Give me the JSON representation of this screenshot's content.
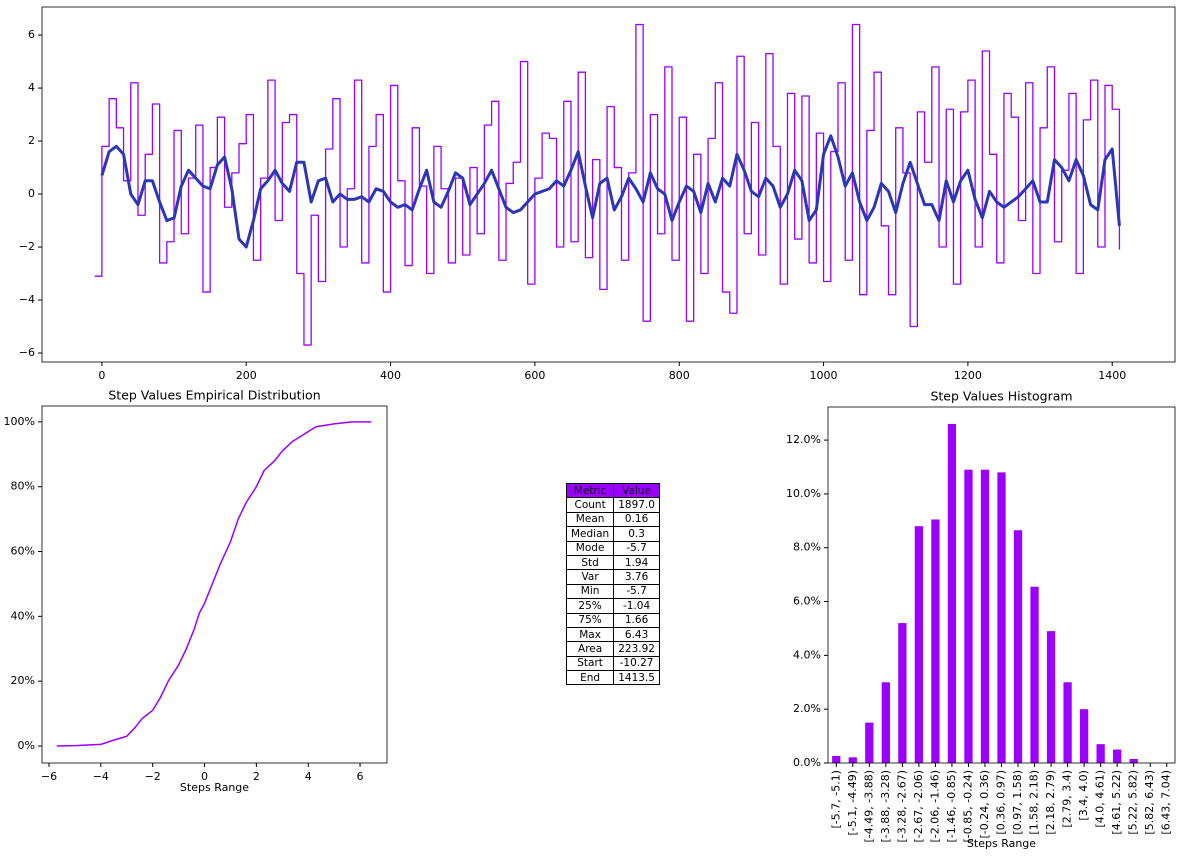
{
  "chart_data": [
    {
      "type": "line",
      "xlim": [
        -83,
        1487
      ],
      "ylim": [
        -6.34,
        7.06
      ],
      "xticks": [
        0,
        200,
        400,
        600,
        800,
        1000,
        1200,
        1400
      ],
      "yticks": [
        {
          "value": -6,
          "label": "−6"
        },
        {
          "value": -4,
          "label": "−4"
        },
        {
          "value": -2,
          "label": "−2"
        },
        0,
        2,
        4,
        6
      ],
      "series": [
        {
          "color": "#9b00ff",
          "drawstyle": "steps-post",
          "width": 1.3,
          "x": [
            -10,
            0,
            10,
            20,
            30,
            40,
            50,
            60,
            70,
            80,
            90,
            100,
            110,
            120,
            130,
            140,
            150,
            160,
            170,
            180,
            190,
            200,
            210,
            220,
            230,
            240,
            250,
            260,
            270,
            280,
            290,
            300,
            310,
            320,
            330,
            340,
            350,
            360,
            370,
            380,
            390,
            400,
            410,
            420,
            430,
            440,
            450,
            460,
            470,
            480,
            490,
            500,
            510,
            520,
            530,
            540,
            550,
            560,
            570,
            580,
            590,
            600,
            610,
            620,
            630,
            640,
            650,
            660,
            670,
            680,
            690,
            700,
            710,
            720,
            730,
            740,
            750,
            760,
            770,
            780,
            790,
            800,
            810,
            820,
            830,
            840,
            850,
            860,
            870,
            880,
            890,
            900,
            910,
            920,
            930,
            940,
            950,
            960,
            970,
            980,
            990,
            1000,
            1010,
            1020,
            1030,
            1040,
            1050,
            1060,
            1070,
            1080,
            1090,
            1100,
            1110,
            1120,
            1130,
            1140,
            1150,
            1160,
            1170,
            1180,
            1190,
            1200,
            1210,
            1220,
            1230,
            1240,
            1250,
            1260,
            1270,
            1280,
            1290,
            1300,
            1310,
            1320,
            1330,
            1340,
            1350,
            1360,
            1370,
            1380,
            1390,
            1400,
            1410
          ],
          "values": [
            -3.1,
            1.8,
            3.6,
            2.5,
            0.5,
            4.2,
            -0.8,
            1.5,
            3.4,
            -2.6,
            -1.8,
            2.4,
            -1.5,
            0.6,
            2.6,
            -3.7,
            1.0,
            2.9,
            -0.5,
            0.8,
            1.9,
            3.0,
            -2.5,
            0.6,
            4.3,
            -1.0,
            2.7,
            3.0,
            -3.0,
            -5.7,
            -0.8,
            -3.3,
            1.7,
            3.6,
            -2.0,
            0.2,
            4.3,
            -2.6,
            1.8,
            3.0,
            -3.7,
            4.1,
            0.5,
            -2.7,
            2.5,
            0.3,
            -3.0,
            1.8,
            0.2,
            -2.6,
            0.6,
            -2.3,
            1.0,
            -1.5,
            2.6,
            3.5,
            -2.5,
            0.4,
            1.2,
            5.0,
            -3.4,
            0.6,
            2.3,
            2.1,
            -2.0,
            3.5,
            -1.8,
            4.6,
            -2.4,
            1.3,
            -3.6,
            3.3,
            1.0,
            -2.5,
            0.8,
            6.4,
            -4.8,
            3.0,
            -1.5,
            4.8,
            -2.5,
            2.9,
            -4.8,
            1.5,
            -3.0,
            2.1,
            4.2,
            -3.7,
            -4.5,
            5.2,
            -1.5,
            2.7,
            -2.3,
            5.3,
            1.8,
            -3.4,
            3.8,
            -1.7,
            3.7,
            -2.6,
            2.3,
            -3.3,
            1.6,
            4.2,
            -2.5,
            6.4,
            -3.8,
            2.4,
            4.6,
            -1.2,
            -3.8,
            2.5,
            0.8,
            -5.0,
            3.1,
            1.2,
            4.8,
            -2.0,
            3.2,
            -3.4,
            3.1,
            4.3,
            -2.0,
            5.4,
            1.5,
            -2.6,
            3.8,
            2.9,
            -1.0,
            4.2,
            -3.0,
            2.5,
            4.8,
            -1.8,
            0.9,
            3.8,
            -3.0,
            2.8,
            4.3,
            -2.0,
            4.1,
            3.2,
            -2.1
          ]
        },
        {
          "color": "#2b36b8",
          "width": 3,
          "x": [
            0,
            10,
            20,
            30,
            40,
            50,
            60,
            70,
            80,
            90,
            100,
            110,
            120,
            130,
            140,
            150,
            160,
            170,
            180,
            190,
            200,
            210,
            220,
            230,
            240,
            250,
            260,
            270,
            280,
            290,
            300,
            310,
            320,
            330,
            340,
            350,
            360,
            370,
            380,
            390,
            400,
            410,
            420,
            430,
            440,
            450,
            460,
            470,
            480,
            490,
            500,
            510,
            520,
            530,
            540,
            550,
            560,
            570,
            580,
            590,
            600,
            610,
            620,
            630,
            640,
            650,
            660,
            670,
            680,
            690,
            700,
            710,
            720,
            730,
            740,
            750,
            760,
            770,
            780,
            790,
            800,
            810,
            820,
            830,
            840,
            850,
            860,
            870,
            880,
            890,
            900,
            910,
            920,
            930,
            940,
            950,
            960,
            970,
            980,
            990,
            1000,
            1010,
            1020,
            1030,
            1040,
            1050,
            1060,
            1070,
            1080,
            1090,
            1100,
            1110,
            1120,
            1130,
            1140,
            1150,
            1160,
            1170,
            1180,
            1190,
            1200,
            1210,
            1220,
            1230,
            1240,
            1250,
            1260,
            1270,
            1280,
            1290,
            1300,
            1310,
            1320,
            1330,
            1340,
            1350,
            1360,
            1370,
            1380,
            1390,
            1400,
            1410
          ],
          "values": [
            0.7,
            1.6,
            1.8,
            1.5,
            0,
            -0.4,
            0.5,
            0.5,
            -0.3,
            -1.0,
            -0.9,
            0.3,
            0.9,
            0.6,
            0.3,
            0.2,
            1.1,
            1.4,
            0.2,
            -1.7,
            -2.0,
            -1.0,
            0.2,
            0.5,
            0.9,
            0.4,
            0.1,
            1.2,
            1.2,
            -0.3,
            0.5,
            0.6,
            -0.3,
            0,
            -0.2,
            -0.2,
            -0.1,
            -0.3,
            0.2,
            0.1,
            -0.3,
            -0.5,
            -0.4,
            -0.6,
            0.2,
            0.9,
            -0.3,
            -0.5,
            0.1,
            0.8,
            0.6,
            -0.4,
            0,
            0.4,
            0.9,
            0.2,
            -0.5,
            -0.7,
            -0.6,
            -0.3,
            0,
            0.1,
            0.2,
            0.5,
            0.3,
            0.9,
            1.6,
            0.3,
            -0.9,
            0.4,
            0.6,
            -0.6,
            -0.1,
            0.6,
            0.2,
            -0.3,
            0.8,
            0.2,
            0,
            -1.0,
            -0.3,
            0.3,
            0.1,
            -0.7,
            0.4,
            -0.3,
            0.6,
            0.3,
            1.5,
            0.9,
            0.1,
            -0.1,
            0.6,
            0.3,
            -0.5,
            0,
            0.9,
            0.5,
            -1.0,
            -0.6,
            1.5,
            2.2,
            1.4,
            0.3,
            0.8,
            -0.3,
            -1.0,
            -0.5,
            0.4,
            0.1,
            -0.7,
            0.4,
            1.2,
            0.4,
            -0.4,
            -0.4,
            -1.0,
            0.5,
            -0.3,
            0.5,
            0.9,
            -0.2,
            -0.9,
            0.1,
            -0.3,
            -0.5,
            -0.3,
            -0.1,
            0.2,
            0.5,
            -0.3,
            -0.3,
            1.3,
            1.0,
            0.5,
            1.3,
            0.7,
            -0.4,
            -0.6,
            1.3,
            1.7,
            -1.2
          ]
        }
      ]
    },
    {
      "type": "line",
      "title": "Step Values Empirical Distribution",
      "xlabel": "Steps Range",
      "xlim": [
        -6.27,
        7.04
      ],
      "ylim": [
        -5.25,
        104.9
      ],
      "xticks": [
        {
          "value": -6,
          "label": "−6"
        },
        {
          "value": -4,
          "label": "−4"
        },
        {
          "value": -2,
          "label": "−2"
        },
        0,
        2,
        4,
        6
      ],
      "yticks": [
        {
          "value": 0,
          "label": "0%"
        },
        {
          "value": 20,
          "label": "20%"
        },
        {
          "value": 40,
          "label": "40%"
        },
        {
          "value": 60,
          "label": "60%"
        },
        {
          "value": 80,
          "label": "80%"
        },
        {
          "value": 100,
          "label": "100%"
        }
      ],
      "series": [
        {
          "color": "#9b00ff",
          "width": 1.5,
          "x": [
            -5.7,
            -5,
            -4.5,
            -4,
            -3.5,
            -3,
            -2.7,
            -2.4,
            -2,
            -1.7,
            -1.4,
            -1,
            -0.7,
            -0.4,
            -0.2,
            0,
            0.3,
            0.6,
            1,
            1.3,
            1.6,
            2,
            2.3,
            2.7,
            3,
            3.4,
            3.8,
            4.3,
            5,
            5.7,
            6.43
          ],
          "values": [
            0,
            0.1,
            0.3,
            0.5,
            1.8,
            3,
            5.5,
            8.5,
            11,
            15,
            20,
            25,
            30,
            36,
            41,
            44,
            50,
            56,
            63,
            70,
            75,
            80,
            85,
            88,
            91,
            94,
            96,
            98.5,
            99.4,
            100,
            100
          ]
        }
      ]
    },
    {
      "type": "bar",
      "title": "Step Values Histogram",
      "xlabel": "Steps Range",
      "color": "#9b00ff",
      "categories": [
        "[-5.7, -5.1)",
        "[-5.1, -4.49)",
        "[-4.49, -3.88)",
        "[-3.88, -3.28)",
        "[-3.28, -2.67)",
        "[-2.67, -2.06)",
        "[-2.06, -1.46)",
        "[-1.46, -0.85)",
        "[-0.85, -0.24)",
        "[-0.24, 0.36)",
        "[0.36, 0.97)",
        "[0.97, 1.58)",
        "[1.58, 2.18)",
        "[2.18, 2.79)",
        "[2.79, 3.4)",
        "[3.4, 4.0)",
        "[4.0, 4.61)",
        "[4.61, 5.22)",
        "[5.22, 5.82)",
        "[5.82, 6.43)",
        "[6.43, 7.04)"
      ],
      "values": [
        0.26,
        0.21,
        1.5,
        3.0,
        5.2,
        8.8,
        9.05,
        12.6,
        10.9,
        10.9,
        10.8,
        8.65,
        6.55,
        4.9,
        3.0,
        2.0,
        0.7,
        0.5,
        0.15,
        0,
        0
      ],
      "ylim": [
        0,
        13.23
      ],
      "yticks": [
        {
          "value": 0,
          "label": "0.0%"
        },
        {
          "value": 2,
          "label": "2.0%"
        },
        {
          "value": 4,
          "label": "4.0%"
        },
        {
          "value": 6,
          "label": "6.0%"
        },
        {
          "value": 8,
          "label": "8.0%"
        },
        {
          "value": 10,
          "label": "10.0%"
        },
        {
          "value": 12,
          "label": "12.0%"
        }
      ]
    }
  ],
  "table": {
    "header": [
      "Metric",
      "Value"
    ],
    "rows": [
      [
        "Count",
        "1897.0"
      ],
      [
        "Mean",
        "0.16"
      ],
      [
        "Median",
        "0.3"
      ],
      [
        "Mode",
        "-5.7"
      ],
      [
        "Std",
        "1.94"
      ],
      [
        "Var",
        "3.76"
      ],
      [
        "Min",
        "-5.7"
      ],
      [
        "25%",
        "-1.04"
      ],
      [
        "75%",
        "1.66"
      ],
      [
        "Max",
        "6.43"
      ],
      [
        "Area",
        "223.92"
      ],
      [
        "Start",
        "-10.27"
      ],
      [
        "End",
        "1413.5"
      ]
    ]
  }
}
